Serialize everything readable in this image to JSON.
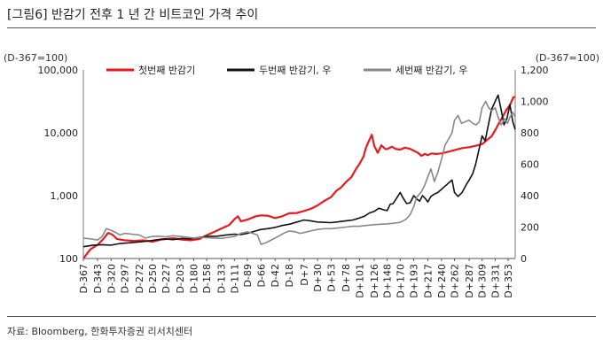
{
  "figure": {
    "title": "[그림6]    반감기 전후 1 년 간 비트코인 가격 추이",
    "source": "자료: Bloomberg, 한화투자증권 리서치센터"
  },
  "chart_data": {
    "type": "line",
    "left_unit_label": "(D-367=100)",
    "right_unit_label": "(D-367=100)",
    "left_axis": {
      "scale": "log",
      "range": [
        100,
        100000
      ],
      "ticks": [
        100,
        1000,
        10000,
        100000
      ],
      "tick_labels": [
        "100",
        "1,000",
        "10,000",
        "100,000"
      ]
    },
    "right_axis": {
      "scale": "linear",
      "range": [
        0,
        1200
      ],
      "ticks": [
        0,
        200,
        400,
        600,
        800,
        1000,
        1200
      ],
      "tick_labels": [
        "0",
        "200",
        "400",
        "600",
        "800",
        "1,000",
        "1,200"
      ]
    },
    "x_range": [
      -367,
      365
    ],
    "x_ticks": [
      -367,
      -343,
      -320,
      -297,
      -272,
      -250,
      -227,
      -203,
      -180,
      -158,
      -133,
      -111,
      -89,
      -66,
      -42,
      -18,
      7,
      30,
      53,
      78,
      101,
      126,
      148,
      170,
      193,
      217,
      240,
      262,
      287,
      309,
      331,
      353
    ],
    "x_tick_labels": [
      "D-367",
      "D-343",
      "D-320",
      "D-297",
      "D-272",
      "D-250",
      "D-227",
      "D-203",
      "D-180",
      "D-158",
      "D-133",
      "D-111",
      "D-89",
      "D-66",
      "D-42",
      "D-18",
      "D+7",
      "D+30",
      "D+53",
      "D+78",
      "D+101",
      "D+126",
      "D+148",
      "D+170",
      "D+193",
      "D+217",
      "D+240",
      "D+262",
      "D+287",
      "D+309",
      "D+331",
      "D+353"
    ],
    "legend_position": "top",
    "series": [
      {
        "name": "첫번째 반감기",
        "axis": "left",
        "color": "#e8191f",
        "points": [
          [
            -367,
            100
          ],
          [
            -355,
            140
          ],
          [
            -343,
            165
          ],
          [
            -332,
            210
          ],
          [
            -325,
            255
          ],
          [
            -318,
            240
          ],
          [
            -310,
            205
          ],
          [
            -297,
            195
          ],
          [
            -280,
            190
          ],
          [
            -265,
            195
          ],
          [
            -250,
            185
          ],
          [
            -235,
            200
          ],
          [
            -215,
            210
          ],
          [
            -200,
            200
          ],
          [
            -185,
            195
          ],
          [
            -170,
            205
          ],
          [
            -158,
            235
          ],
          [
            -145,
            265
          ],
          [
            -133,
            300
          ],
          [
            -120,
            340
          ],
          [
            -111,
            420
          ],
          [
            -105,
            470
          ],
          [
            -100,
            390
          ],
          [
            -89,
            415
          ],
          [
            -75,
            470
          ],
          [
            -66,
            485
          ],
          [
            -55,
            480
          ],
          [
            -42,
            440
          ],
          [
            -30,
            470
          ],
          [
            -18,
            525
          ],
          [
            -5,
            530
          ],
          [
            7,
            570
          ],
          [
            20,
            625
          ],
          [
            30,
            700
          ],
          [
            42,
            830
          ],
          [
            53,
            950
          ],
          [
            62,
            1200
          ],
          [
            70,
            1350
          ],
          [
            78,
            1650
          ],
          [
            87,
            1950
          ],
          [
            95,
            2650
          ],
          [
            101,
            3200
          ],
          [
            108,
            4200
          ],
          [
            112,
            5800
          ],
          [
            118,
            7800
          ],
          [
            122,
            9300
          ],
          [
            126,
            6200
          ],
          [
            132,
            4800
          ],
          [
            138,
            6300
          ],
          [
            145,
            5500
          ],
          [
            148,
            5500
          ],
          [
            156,
            6000
          ],
          [
            163,
            5500
          ],
          [
            170,
            5400
          ],
          [
            178,
            5800
          ],
          [
            186,
            5600
          ],
          [
            193,
            5200
          ],
          [
            200,
            4800
          ],
          [
            206,
            4300
          ],
          [
            212,
            4600
          ],
          [
            217,
            4400
          ],
          [
            223,
            4700
          ],
          [
            230,
            4600
          ],
          [
            240,
            4700
          ],
          [
            250,
            4950
          ],
          [
            262,
            5300
          ],
          [
            275,
            5700
          ],
          [
            287,
            5900
          ],
          [
            298,
            6200
          ],
          [
            309,
            6600
          ],
          [
            318,
            7800
          ],
          [
            325,
            8800
          ],
          [
            331,
            11000
          ],
          [
            338,
            14500
          ],
          [
            345,
            19000
          ],
          [
            350,
            23000
          ],
          [
            356,
            27500
          ],
          [
            362,
            37000
          ],
          [
            365,
            37000
          ]
        ]
      },
      {
        "name": "두번째 반감기",
        "axis": "right",
        "color": "#111111",
        "points": [
          [
            -367,
            75
          ],
          [
            -350,
            85
          ],
          [
            -335,
            88
          ],
          [
            -320,
            85
          ],
          [
            -305,
            95
          ],
          [
            -290,
            100
          ],
          [
            -275,
            105
          ],
          [
            -260,
            110
          ],
          [
            -245,
            118
          ],
          [
            -230,
            125
          ],
          [
            -215,
            120
          ],
          [
            -200,
            128
          ],
          [
            -185,
            125
          ],
          [
            -170,
            135
          ],
          [
            -155,
            140
          ],
          [
            -140,
            142
          ],
          [
            -125,
            150
          ],
          [
            -111,
            155
          ],
          [
            -100,
            152
          ],
          [
            -89,
            160
          ],
          [
            -75,
            175
          ],
          [
            -66,
            185
          ],
          [
            -55,
            190
          ],
          [
            -42,
            198
          ],
          [
            -30,
            210
          ],
          [
            -18,
            218
          ],
          [
            -5,
            232
          ],
          [
            7,
            245
          ],
          [
            18,
            240
          ],
          [
            30,
            232
          ],
          [
            42,
            230
          ],
          [
            53,
            228
          ],
          [
            65,
            233
          ],
          [
            78,
            240
          ],
          [
            90,
            245
          ],
          [
            101,
            258
          ],
          [
            110,
            270
          ],
          [
            118,
            290
          ],
          [
            126,
            300
          ],
          [
            134,
            320
          ],
          [
            142,
            310
          ],
          [
            148,
            305
          ],
          [
            153,
            345
          ],
          [
            158,
            350
          ],
          [
            165,
            390
          ],
          [
            170,
            420
          ],
          [
            175,
            385
          ],
          [
            181,
            350
          ],
          [
            187,
            355
          ],
          [
            193,
            400
          ],
          [
            198,
            380
          ],
          [
            203,
            365
          ],
          [
            208,
            400
          ],
          [
            213,
            380
          ],
          [
            217,
            360
          ],
          [
            222,
            395
          ],
          [
            228,
            410
          ],
          [
            234,
            420
          ],
          [
            240,
            440
          ],
          [
            246,
            460
          ],
          [
            252,
            480
          ],
          [
            258,
            500
          ],
          [
            262,
            420
          ],
          [
            268,
            395
          ],
          [
            275,
            420
          ],
          [
            282,
            470
          ],
          [
            287,
            500
          ],
          [
            293,
            540
          ],
          [
            298,
            600
          ],
          [
            304,
            700
          ],
          [
            309,
            780
          ],
          [
            314,
            750
          ],
          [
            320,
            860
          ],
          [
            325,
            950
          ],
          [
            331,
            1000
          ],
          [
            336,
            1040
          ],
          [
            341,
            950
          ],
          [
            346,
            850
          ],
          [
            351,
            890
          ],
          [
            356,
            980
          ],
          [
            361,
            870
          ],
          [
            365,
            820
          ]
        ]
      },
      {
        "name": "세번째 반감기",
        "axis": "right",
        "color": "#888888",
        "points": [
          [
            -367,
            130
          ],
          [
            -355,
            125
          ],
          [
            -343,
            118
          ],
          [
            -335,
            140
          ],
          [
            -328,
            190
          ],
          [
            -320,
            180
          ],
          [
            -312,
            165
          ],
          [
            -305,
            150
          ],
          [
            -297,
            160
          ],
          [
            -285,
            155
          ],
          [
            -272,
            150
          ],
          [
            -262,
            130
          ],
          [
            -250,
            140
          ],
          [
            -240,
            142
          ],
          [
            -227,
            138
          ],
          [
            -215,
            145
          ],
          [
            -203,
            140
          ],
          [
            -190,
            135
          ],
          [
            -180,
            130
          ],
          [
            -170,
            135
          ],
          [
            -158,
            133
          ],
          [
            -145,
            130
          ],
          [
            -133,
            128
          ],
          [
            -120,
            135
          ],
          [
            -111,
            140
          ],
          [
            -100,
            160
          ],
          [
            -89,
            170
          ],
          [
            -80,
            160
          ],
          [
            -72,
            150
          ],
          [
            -66,
            90
          ],
          [
            -58,
            100
          ],
          [
            -50,
            115
          ],
          [
            -42,
            130
          ],
          [
            -35,
            145
          ],
          [
            -25,
            165
          ],
          [
            -18,
            175
          ],
          [
            -8,
            170
          ],
          [
            0,
            160
          ],
          [
            7,
            165
          ],
          [
            18,
            175
          ],
          [
            30,
            185
          ],
          [
            42,
            190
          ],
          [
            53,
            190
          ],
          [
            65,
            195
          ],
          [
            78,
            200
          ],
          [
            90,
            205
          ],
          [
            101,
            205
          ],
          [
            112,
            210
          ],
          [
            126,
            215
          ],
          [
            136,
            218
          ],
          [
            148,
            220
          ],
          [
            160,
            225
          ],
          [
            170,
            230
          ],
          [
            180,
            250
          ],
          [
            187,
            280
          ],
          [
            193,
            330
          ],
          [
            198,
            390
          ],
          [
            205,
            420
          ],
          [
            211,
            460
          ],
          [
            217,
            520
          ],
          [
            222,
            570
          ],
          [
            228,
            490
          ],
          [
            234,
            550
          ],
          [
            240,
            630
          ],
          [
            246,
            720
          ],
          [
            252,
            760
          ],
          [
            258,
            800
          ],
          [
            262,
            880
          ],
          [
            268,
            910
          ],
          [
            274,
            860
          ],
          [
            280,
            870
          ],
          [
            287,
            880
          ],
          [
            293,
            860
          ],
          [
            299,
            850
          ],
          [
            304,
            870
          ],
          [
            309,
            960
          ],
          [
            315,
            1000
          ],
          [
            320,
            960
          ],
          [
            325,
            940
          ],
          [
            331,
            960
          ],
          [
            336,
            900
          ],
          [
            341,
            850
          ],
          [
            347,
            890
          ],
          [
            352,
            860
          ],
          [
            356,
            900
          ],
          [
            361,
            930
          ],
          [
            365,
            900
          ]
        ]
      }
    ]
  }
}
